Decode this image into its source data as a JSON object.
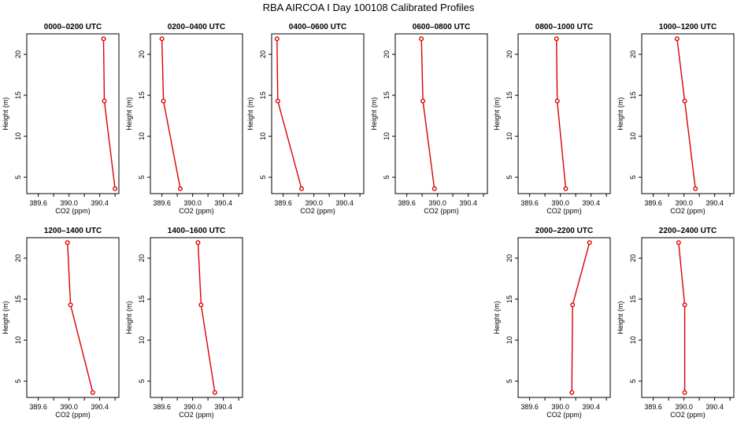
{
  "title": "RBA AIRCOA I  Day 100108  Calibrated Profiles",
  "chart_data": {
    "type": "line",
    "xlabel": "CO2 (ppm)",
    "ylabel": "Height (m)",
    "xlim": [
      389.45,
      390.65
    ],
    "ylim": [
      3.0,
      22.5
    ],
    "x_ticks": [
      "389.6",
      "390.0",
      "390.4"
    ],
    "x_tick_values": [
      389.6,
      389.8,
      390.0,
      390.2,
      390.4,
      390.6
    ],
    "y_ticks": [
      5,
      10,
      15,
      20
    ],
    "grid": false,
    "line_color": "#dd0000",
    "heights": [
      21.9,
      14.3,
      3.6
    ],
    "panels": [
      {
        "title": "0000–0200 UTC",
        "co2": [
          390.45,
          390.46,
          390.6
        ]
      },
      {
        "title": "0200–0400 UTC",
        "co2": [
          389.6,
          389.62,
          389.84
        ]
      },
      {
        "title": "0400–0600 UTC",
        "co2": [
          389.52,
          389.53,
          389.84
        ]
      },
      {
        "title": "0600–0800 UTC",
        "co2": [
          389.79,
          389.81,
          389.96
        ]
      },
      {
        "title": "0800–1000 UTC",
        "co2": [
          389.95,
          389.96,
          390.07
        ]
      },
      {
        "title": "1000–1200 UTC",
        "co2": [
          389.91,
          390.01,
          390.15
        ]
      },
      {
        "title": "1200–1400 UTC",
        "co2": [
          389.98,
          390.02,
          390.31
        ]
      },
      {
        "title": "1400–1600 UTC",
        "co2": [
          390.07,
          390.11,
          390.29
        ]
      },
      null,
      null,
      {
        "title": "2000–2200 UTC",
        "co2": [
          390.38,
          390.16,
          390.15
        ]
      },
      {
        "title": "2200–2400 UTC",
        "co2": [
          389.93,
          390.01,
          390.01
        ]
      }
    ]
  }
}
